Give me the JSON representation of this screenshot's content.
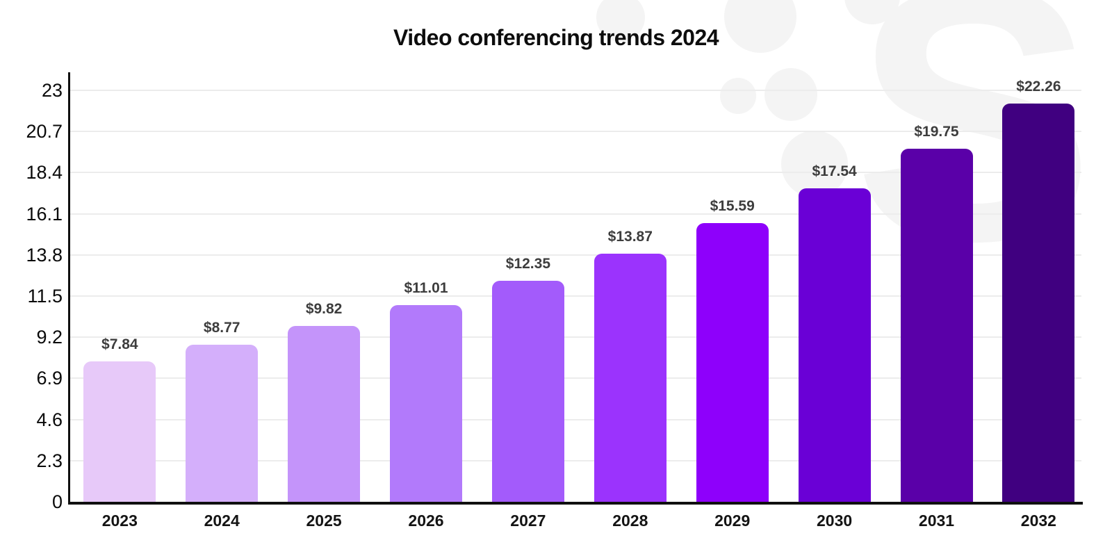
{
  "title": "Video conferencing trends 2024",
  "watermark": {
    "icon": "s-logo-watermark",
    "letter": "S",
    "color": "#f4f4f4"
  },
  "chart_data": {
    "type": "bar",
    "title": "Video conferencing trends 2024",
    "categories": [
      "2023",
      "2024",
      "2025",
      "2026",
      "2027",
      "2028",
      "2029",
      "2030",
      "2031",
      "2032"
    ],
    "values": [
      7.84,
      8.77,
      9.82,
      11.01,
      12.35,
      13.87,
      15.59,
      17.54,
      19.75,
      22.26
    ],
    "bar_labels": [
      "$7.84",
      "$8.77",
      "$9.82",
      "$11.01",
      "$12.35",
      "$13.87",
      "$15.59",
      "$17.54",
      "$19.75",
      "$22.26"
    ],
    "bar_colors": [
      "#E7C9F9",
      "#D4AFFB",
      "#C494FA",
      "#B27AFB",
      "#A35BFB",
      "#9B33FD",
      "#8E00FB",
      "#6A00D6",
      "#5A00A8",
      "#400080"
    ],
    "xlabel": "",
    "ylabel": "",
    "ylim": [
      0,
      23
    ],
    "yticks": [
      0,
      2.3,
      4.6,
      6.9,
      9.2,
      11.5,
      13.8,
      16.1,
      18.4,
      20.7,
      23
    ],
    "ytick_labels": [
      "0",
      "2.3",
      "4.6",
      "6.9",
      "9.2",
      "11.5",
      "13.8",
      "16.1",
      "18.4",
      "20.7",
      "23"
    ],
    "grid": "horizontal",
    "legend": "none",
    "value_label_color": "#3d3d3d",
    "axis_color": "#101010",
    "gridline_color": "#ececec",
    "background_color": "#ffffff"
  }
}
